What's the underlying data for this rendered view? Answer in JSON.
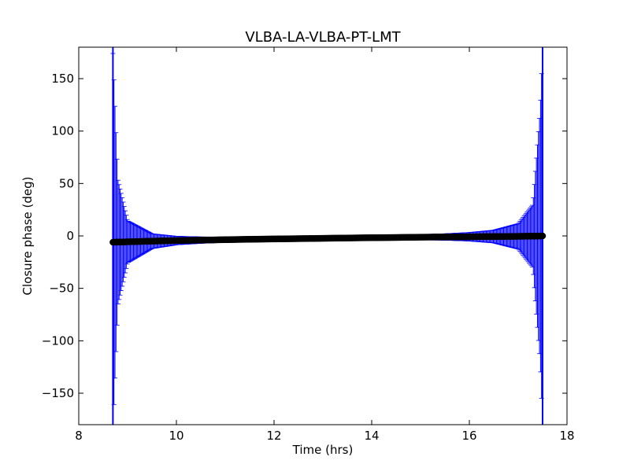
{
  "chart_data": {
    "type": "scatter",
    "title": "VLBA-LA-VLBA-PT-LMT",
    "xlabel": "Time (hrs)",
    "ylabel": "Closure phase (deg)",
    "xlim": [
      8,
      18
    ],
    "ylim": [
      -180,
      180
    ],
    "x_ticks": [
      8,
      10,
      12,
      14,
      16,
      18
    ],
    "x_tick_labels": [
      "8",
      "10",
      "12",
      "14",
      "16",
      "18"
    ],
    "y_ticks": [
      -150,
      -100,
      -50,
      0,
      50,
      100,
      150
    ],
    "y_tick_labels": [
      "−150",
      "−100",
      "−50",
      "0",
      "50",
      "100",
      "150"
    ],
    "grid": false,
    "legend": "none",
    "series": [
      {
        "x": [
          8.7,
          8.8,
          9.0,
          9.5,
          10.0,
          10.5,
          11.0,
          11.5,
          12.0,
          12.5,
          13.0,
          13.5,
          14.0,
          14.5,
          15.0,
          15.5,
          16.0,
          16.5,
          17.0,
          17.3,
          17.45,
          17.5
        ],
        "y": [
          -6.0,
          -5.9,
          -5.6,
          -5.0,
          -4.4,
          -4.0,
          -3.6,
          -3.2,
          -2.9,
          -2.6,
          -2.3,
          -2.0,
          -1.7,
          -1.5,
          -1.2,
          -1.0,
          -0.8,
          -0.6,
          -0.4,
          -0.2,
          -0.1,
          0.0
        ],
        "error": [
          180,
          60,
          20,
          7,
          4,
          3,
          2.5,
          2,
          2,
          2,
          2,
          2,
          2,
          2,
          2.5,
          3,
          4,
          6,
          12,
          30,
          120,
          180
        ],
        "marker_color": "#000000",
        "errorbar_color": "#0000ff"
      }
    ]
  }
}
